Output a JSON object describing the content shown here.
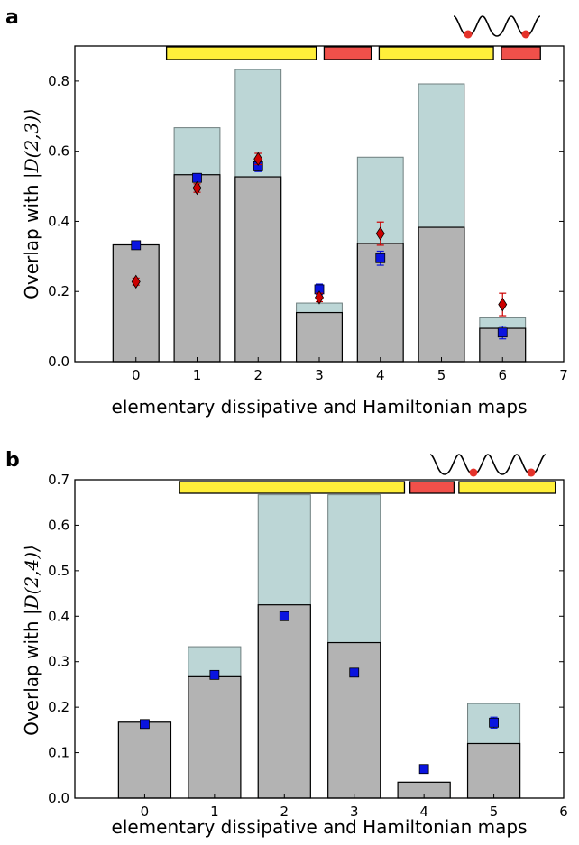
{
  "chart_data": [
    {
      "panel": "a",
      "type": "bar",
      "xlabel": "elementary dissipative and Hamiltonian maps",
      "ylabel_prefix": "Overlap with ",
      "ylabel_math": "|D(2,3)⟩",
      "xlim": [
        -1,
        7
      ],
      "ylim": [
        0,
        0.9
      ],
      "xticks": [
        "0",
        "1",
        "2",
        "3",
        "4",
        "5",
        "6",
        "7"
      ],
      "yticks": [
        "0.0",
        "0.2",
        "0.4",
        "0.6",
        "0.8"
      ],
      "x": [
        0,
        1,
        2,
        3,
        4,
        5,
        6
      ],
      "series": [
        {
          "values": [
            0.333,
            0.667,
            0.833,
            0.167,
            0.583,
            0.792,
            0.125
          ],
          "color": "#bcd6d6"
        },
        {
          "values": [
            0.333,
            0.533,
            0.527,
            0.14,
            0.337,
            0.383,
            0.095
          ],
          "color": "#b3b3b3"
        },
        {
          "marker": "square",
          "color": "#0a14e0",
          "values": [
            0.332,
            0.524,
            0.557,
            0.206,
            0.295,
            null,
            0.083
          ],
          "errors": [
            0.008,
            0.012,
            0.015,
            0.015,
            0.02,
            null,
            0.018
          ]
        },
        {
          "marker": "diamond",
          "color": "#cc0000",
          "values": [
            0.228,
            0.495,
            0.578,
            0.183,
            0.365,
            null,
            0.163
          ],
          "errors": [
            0.01,
            0.012,
            0.016,
            0.012,
            0.033,
            null,
            0.032
          ]
        }
      ],
      "map_bars": [
        {
          "from": 0.5,
          "to": 2.95,
          "color": "#ffef3a"
        },
        {
          "from": 3.08,
          "to": 3.85,
          "color": "#f0504a"
        },
        {
          "from": 3.98,
          "to": 5.85,
          "color": "#ffef3a"
        },
        {
          "from": 5.98,
          "to": 6.62,
          "color": "#f0504a"
        }
      ]
    },
    {
      "panel": "b",
      "type": "bar",
      "xlabel": "elementary dissipative and Hamiltonian maps",
      "ylabel_prefix": "Overlap with ",
      "ylabel_math": "|D(2,4)⟩",
      "xlim": [
        -1,
        6
      ],
      "ylim": [
        0,
        0.7
      ],
      "xticks": [
        "0",
        "1",
        "2",
        "3",
        "4",
        "5",
        "6"
      ],
      "yticks": [
        "0.0",
        "0.1",
        "0.2",
        "0.3",
        "0.4",
        "0.5",
        "0.6",
        "0.7"
      ],
      "x": [
        0,
        1,
        2,
        3,
        4,
        5
      ],
      "series": [
        {
          "values": [
            0.167,
            0.333,
            0.667,
            0.667,
            0.035,
            0.208
          ],
          "color": "#bcd6d6"
        },
        {
          "values": [
            0.167,
            0.267,
            0.425,
            0.342,
            0.035,
            0.12
          ],
          "color": "#b3b3b3"
        },
        {
          "marker": "square",
          "color": "#0a14e0",
          "values": [
            0.163,
            0.271,
            0.4,
            0.276,
            0.064,
            0.166
          ],
          "errors": [
            0.004,
            0.005,
            0.008,
            0.009,
            0.004,
            0.012
          ]
        }
      ],
      "map_bars": [
        {
          "from": 0.5,
          "to": 3.72,
          "color": "#ffef3a"
        },
        {
          "from": 3.8,
          "to": 4.43,
          "color": "#f0504a"
        },
        {
          "from": 4.5,
          "to": 5.88,
          "color": "#ffef3a"
        }
      ]
    }
  ]
}
